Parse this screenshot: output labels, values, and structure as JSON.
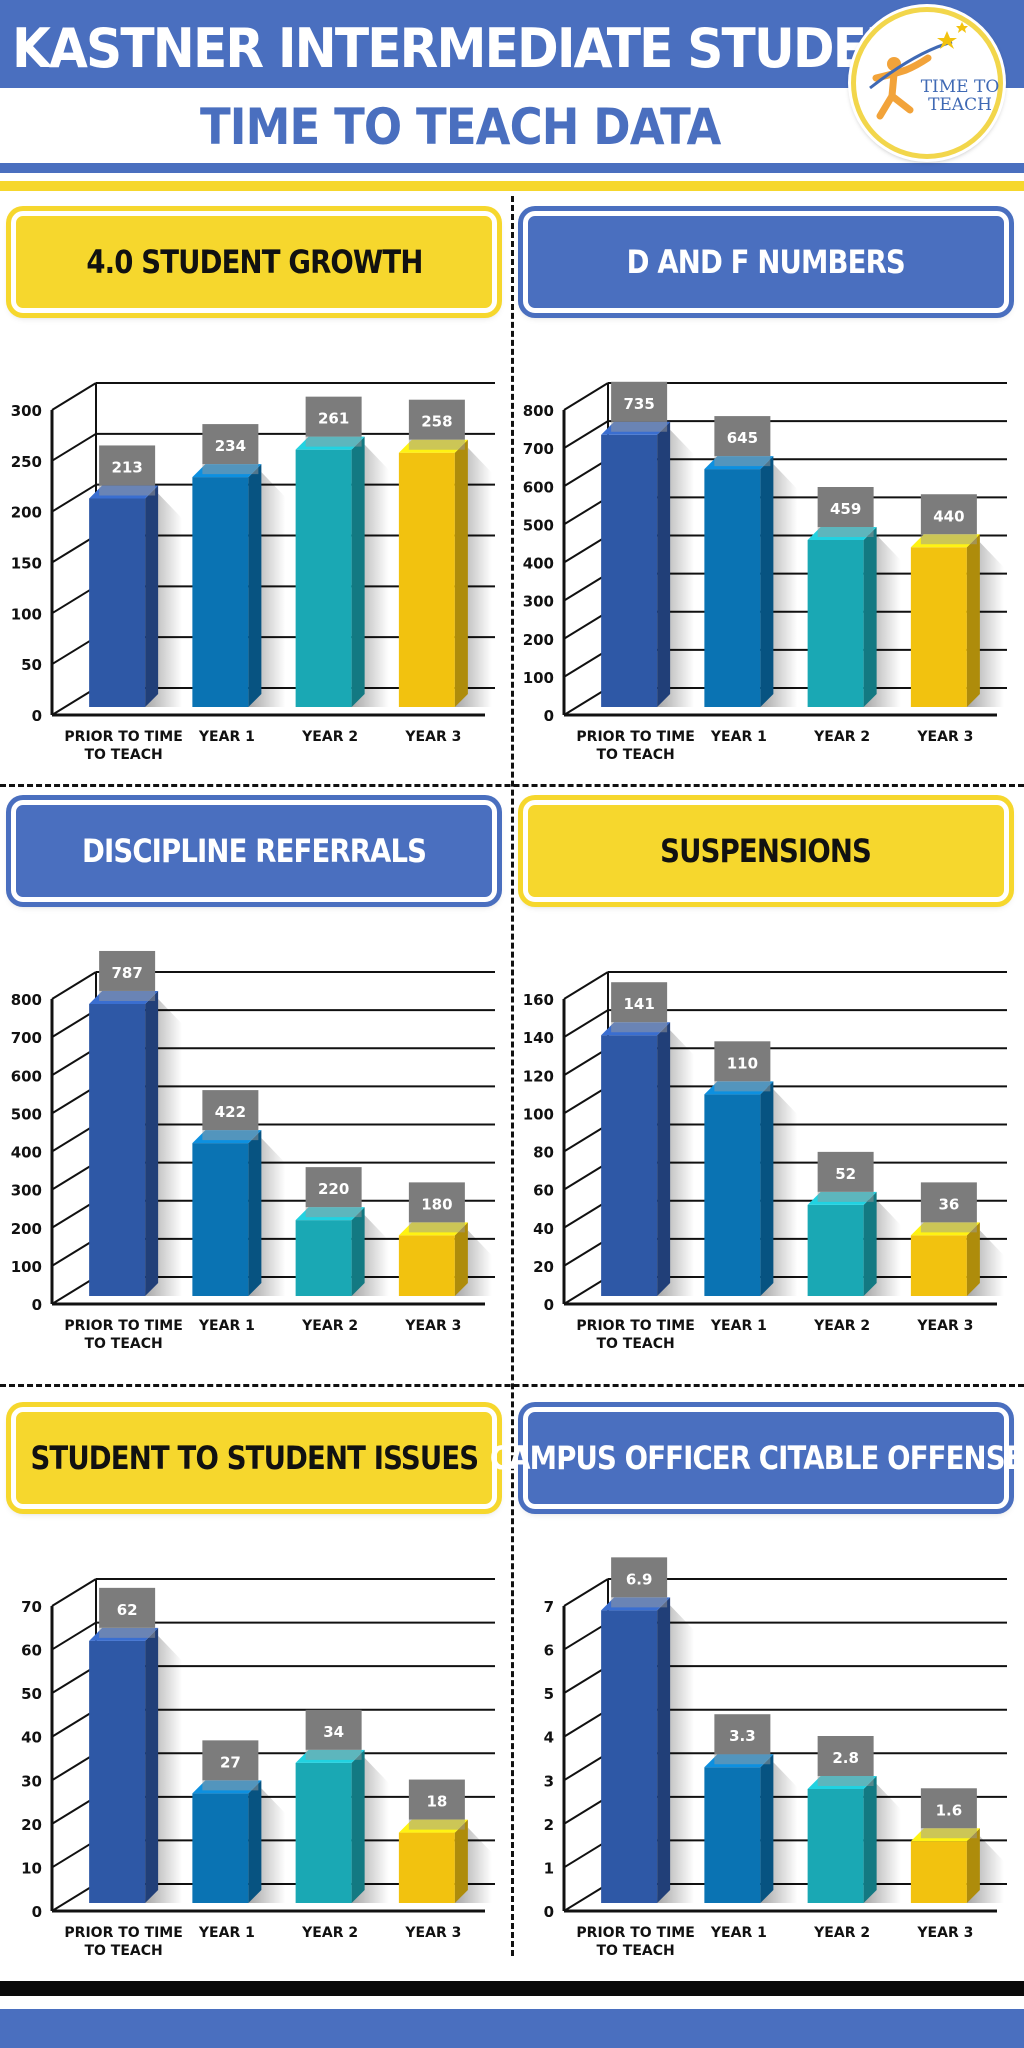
{
  "header": {
    "title": "KASTNER INTERMEDIATE STUDENTS",
    "subtitle": "TIME TO TEACH DATA",
    "logo_text": "TIME TO TEACH"
  },
  "colors": {
    "brand_blue": "#4a6fbf",
    "brand_yellow": "#f6d72d",
    "bar_colors": [
      "#2e58a6",
      "#0a73b3",
      "#1aa8b4",
      "#f2c20f"
    ]
  },
  "categories": [
    "PRIOR TO TIME|TO TEACH",
    "YEAR 1",
    "YEAR 2",
    "YEAR 3"
  ],
  "chart_data": [
    {
      "type": "bar",
      "title": "4.0 STUDENT GROWTH",
      "title_style": "yellow",
      "categories": [
        "PRIOR TO TIME TO TEACH",
        "YEAR 1",
        "YEAR 2",
        "YEAR 3"
      ],
      "values": [
        213,
        234,
        261,
        258
      ],
      "value_labels": [
        "213",
        "234",
        "261",
        "258"
      ],
      "ylim": [
        0,
        300
      ],
      "yticks": [
        0,
        50,
        100,
        150,
        200,
        250,
        300
      ],
      "grid": true
    },
    {
      "type": "bar",
      "title": "D AND F NUMBERS",
      "title_style": "blue",
      "categories": [
        "PRIOR TO TIME TO TEACH",
        "YEAR 1",
        "YEAR 2",
        "YEAR 3"
      ],
      "values": [
        735,
        645,
        459,
        440
      ],
      "value_labels": [
        "735",
        "645",
        "459",
        "440"
      ],
      "ylim": [
        0,
        800
      ],
      "yticks": [
        0,
        100,
        200,
        300,
        400,
        500,
        600,
        700,
        800
      ],
      "grid": true
    },
    {
      "type": "bar",
      "title": "DISCIPLINE REFERRALS",
      "title_style": "blue",
      "categories": [
        "PRIOR TO TIME TO TEACH",
        "YEAR 1",
        "YEAR 2",
        "YEAR 3"
      ],
      "values": [
        787,
        422,
        220,
        180
      ],
      "value_labels": [
        "787",
        "422",
        "220",
        "180"
      ],
      "ylim": [
        0,
        800
      ],
      "yticks": [
        0,
        100,
        200,
        300,
        400,
        500,
        600,
        700,
        800
      ],
      "grid": true
    },
    {
      "type": "bar",
      "title": "SUSPENSIONS",
      "title_style": "yellow",
      "categories": [
        "PRIOR TO TIME TO TEACH",
        "YEAR 1",
        "YEAR 2",
        "YEAR 3"
      ],
      "values": [
        141,
        110,
        52,
        36
      ],
      "value_labels": [
        "141",
        "110",
        "52",
        "36"
      ],
      "ylim": [
        0,
        160
      ],
      "yticks": [
        0,
        20,
        40,
        60,
        80,
        100,
        120,
        140,
        160
      ],
      "grid": true
    },
    {
      "type": "bar",
      "title": "STUDENT TO STUDENT ISSUES",
      "title_style": "yellow",
      "categories": [
        "PRIOR TO TIME TO TEACH",
        "YEAR 1",
        "YEAR 2",
        "YEAR 3"
      ],
      "values": [
        62,
        27,
        34,
        18
      ],
      "value_labels": [
        "62",
        "27",
        "34",
        "18"
      ],
      "ylim": [
        0,
        70
      ],
      "yticks": [
        0,
        10,
        20,
        30,
        40,
        50,
        60,
        70
      ],
      "grid": true
    },
    {
      "type": "bar",
      "title": "CAMPUS OFFICER CITABLE OFFENSES",
      "title_style": "blue",
      "categories": [
        "PRIOR TO TIME TO TEACH",
        "YEAR 1",
        "YEAR 2",
        "YEAR 3"
      ],
      "values": [
        6.9,
        3.3,
        2.8,
        1.6
      ],
      "value_labels": [
        "6.9",
        "3.3",
        "2.8",
        "1.6"
      ],
      "ylim": [
        0,
        7
      ],
      "yticks": [
        0,
        1,
        2,
        3,
        4,
        5,
        6,
        7
      ],
      "grid": true
    }
  ]
}
